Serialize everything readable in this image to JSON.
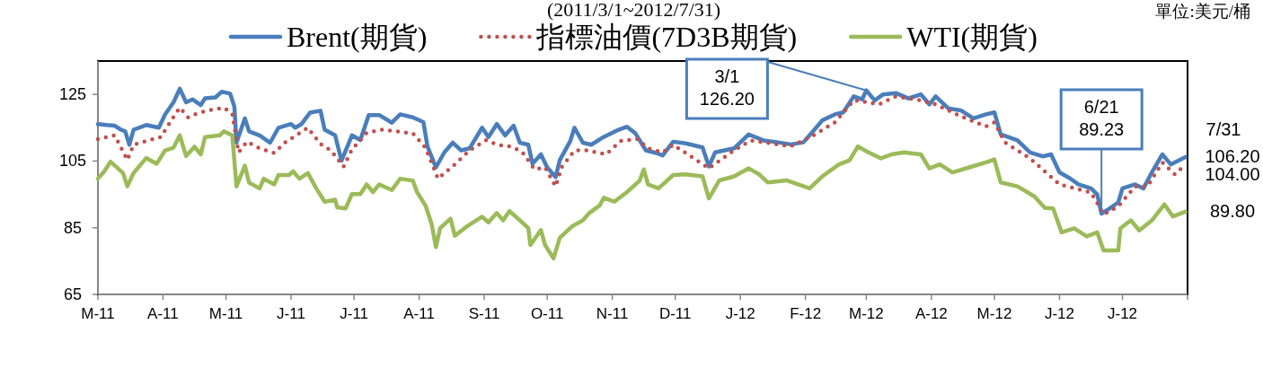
{
  "chart_data": {
    "type": "line",
    "subtitle": "(2011/3/1~2012/7/31)",
    "xlim": [
      "2011-03-01",
      "2012-08-01"
    ],
    "xticks": [
      {
        "value": "2011-03-01",
        "label": "M-11"
      },
      {
        "value": "2011-04-01",
        "label": "A-11"
      },
      {
        "value": "2011-05-01",
        "label": "M-11"
      },
      {
        "value": "2011-06-01",
        "label": "J-11"
      },
      {
        "value": "2011-07-01",
        "label": "J-11"
      },
      {
        "value": "2011-08-01",
        "label": "A-11"
      },
      {
        "value": "2011-09-01",
        "label": "S-11"
      },
      {
        "value": "2011-10-01",
        "label": "O-11"
      },
      {
        "value": "2011-11-01",
        "label": "N-11"
      },
      {
        "value": "2011-12-01",
        "label": "D-11"
      },
      {
        "value": "2012-01-01",
        "label": "J-12"
      },
      {
        "value": "2012-02-01",
        "label": "F-12"
      },
      {
        "value": "2012-03-01",
        "label": "M-12"
      },
      {
        "value": "2012-04-01",
        "label": "A-12"
      },
      {
        "value": "2012-05-01",
        "label": "M-12"
      },
      {
        "value": "2012-06-01",
        "label": "J-12"
      },
      {
        "value": "2012-07-01",
        "label": "J-12"
      },
      {
        "value": "2012-08-01",
        "label": null
      }
    ],
    "ylim": [
      65,
      135
    ],
    "yticks": [
      65,
      85,
      105,
      125
    ],
    "grid": false,
    "legend": "top",
    "marker": "none",
    "annotations": [
      "單位:美元/桶",
      "7/31",
      {
        "text": "3/1\n126.20",
        "x": "2012-03-01",
        "y": 126.2
      },
      {
        "text": "6/21\n89.23",
        "x": "2012-06-21",
        "y": 89.23
      },
      {
        "text": "106.20",
        "x": "2012-07-31",
        "y": 106.2
      },
      {
        "text": "104.00",
        "x": "2012-07-31",
        "y": 104.0
      },
      {
        "text": "89.80",
        "x": "2012-07-31",
        "y": 89.8
      }
    ],
    "series": [
      {
        "name": "Brent(期貨)",
        "color": "#4a7ebb",
        "line_style": "solid",
        "x": [
          "2011-03-01",
          "2011-03-05",
          "2011-03-09",
          "2011-03-12",
          "2011-03-14",
          "2011-03-16",
          "2011-03-18",
          "2011-03-24",
          "2011-03-30",
          "2011-04-02",
          "2011-04-06",
          "2011-04-09",
          "2011-04-12",
          "2011-04-15",
          "2011-04-19",
          "2011-04-21",
          "2011-04-26",
          "2011-04-29",
          "2011-05-03",
          "2011-05-05",
          "2011-05-06",
          "2011-05-10",
          "2011-05-12",
          "2011-05-17",
          "2011-05-22",
          "2011-05-26",
          "2011-06-01",
          "2011-06-03",
          "2011-06-06",
          "2011-06-10",
          "2011-06-15",
          "2011-06-17",
          "2011-06-22",
          "2011-06-25",
          "2011-06-30",
          "2011-07-04",
          "2011-07-08",
          "2011-07-13",
          "2011-07-19",
          "2011-07-23",
          "2011-07-29",
          "2011-08-03",
          "2011-08-05",
          "2011-08-09",
          "2011-08-13",
          "2011-08-17",
          "2011-08-21",
          "2011-08-25",
          "2011-08-31",
          "2011-09-03",
          "2011-09-07",
          "2011-09-11",
          "2011-09-15",
          "2011-09-18",
          "2011-09-22",
          "2011-09-24",
          "2011-09-28",
          "2011-10-01",
          "2011-10-05",
          "2011-10-07",
          "2011-10-12",
          "2011-10-14",
          "2011-10-18",
          "2011-10-22",
          "2011-10-27",
          "2011-11-04",
          "2011-11-08",
          "2011-11-12",
          "2011-11-17",
          "2011-11-22",
          "2011-11-25",
          "2011-11-30",
          "2011-12-06",
          "2011-12-14",
          "2011-12-17",
          "2011-12-20",
          "2011-12-29",
          "2012-01-05",
          "2012-01-12",
          "2012-01-19",
          "2012-01-25",
          "2012-01-31",
          "2012-02-05",
          "2012-02-09",
          "2012-02-15",
          "2012-02-19",
          "2012-02-24",
          "2012-02-28",
          "2012-03-01",
          "2012-03-05",
          "2012-03-09",
          "2012-03-15",
          "2012-03-21",
          "2012-03-27",
          "2012-03-31",
          "2012-04-03",
          "2012-04-09",
          "2012-04-15",
          "2012-04-21",
          "2012-04-27",
          "2012-05-01",
          "2012-05-04",
          "2012-05-12",
          "2012-05-18",
          "2012-05-24",
          "2012-05-28",
          "2012-06-01",
          "2012-06-06",
          "2012-06-10",
          "2012-06-16",
          "2012-06-19",
          "2012-06-21",
          "2012-06-25",
          "2012-06-29",
          "2012-07-01",
          "2012-07-07",
          "2012-07-11",
          "2012-07-15",
          "2012-07-20",
          "2012-07-24",
          "2012-07-31"
        ],
        "values": [
          116.1,
          115.8,
          115.6,
          114.4,
          113.9,
          109.9,
          114.4,
          115.8,
          115.0,
          119.0,
          122.6,
          126.7,
          122.6,
          123.5,
          121.8,
          123.8,
          124.1,
          125.8,
          125.2,
          121.3,
          110.5,
          117.8,
          113.9,
          112.7,
          110.5,
          115.0,
          116.1,
          115.0,
          116.1,
          119.5,
          120.1,
          114.4,
          112.7,
          105.1,
          112.7,
          111.3,
          118.8,
          118.8,
          116.5,
          119.0,
          118.1,
          116.7,
          109.3,
          103.1,
          107.6,
          110.5,
          108.2,
          108.8,
          115.0,
          112.2,
          116.1,
          112.7,
          115.6,
          110.5,
          109.9,
          104.2,
          107.0,
          103.1,
          100.2,
          105.3,
          111.0,
          115.0,
          110.5,
          109.9,
          111.9,
          114.4,
          115.3,
          113.3,
          108.2,
          107.4,
          106.7,
          110.8,
          110.3,
          109.1,
          103.4,
          107.6,
          108.8,
          113.0,
          111.2,
          110.6,
          110.0,
          110.6,
          114.2,
          117.2,
          119.0,
          119.6,
          124.4,
          123.5,
          126.2,
          123.2,
          125.0,
          125.4,
          123.8,
          125.0,
          122.0,
          124.4,
          120.8,
          120.2,
          117.8,
          119.0,
          119.6,
          113.0,
          111.2,
          107.6,
          106.4,
          107.0,
          101.6,
          99.8,
          98.0,
          96.8,
          95.0,
          89.23,
          90.8,
          92.6,
          96.8,
          98.0,
          96.8,
          101.6,
          107.0,
          104.0,
          106.2
        ]
      },
      {
        "name": "指標油價(7D3B期貨)",
        "color": "#c0504d",
        "line_style": "dotted",
        "x": [
          "2011-03-01",
          "2011-03-09",
          "2011-03-15",
          "2011-03-18",
          "2011-03-24",
          "2011-03-31",
          "2011-04-05",
          "2011-04-09",
          "2011-04-13",
          "2011-04-16",
          "2011-04-22",
          "2011-04-30",
          "2011-05-04",
          "2011-05-07",
          "2011-05-11",
          "2011-05-17",
          "2011-05-24",
          "2011-05-29",
          "2011-06-09",
          "2011-06-15",
          "2011-06-20",
          "2011-06-26",
          "2011-06-30",
          "2011-07-07",
          "2011-07-14",
          "2011-07-21",
          "2011-07-29",
          "2011-08-04",
          "2011-08-10",
          "2011-08-18",
          "2011-08-25",
          "2011-09-02",
          "2011-09-07",
          "2011-09-14",
          "2011-09-19",
          "2011-09-25",
          "2011-09-30",
          "2011-10-05",
          "2011-10-08",
          "2011-10-14",
          "2011-10-20",
          "2011-10-29",
          "2011-11-05",
          "2011-11-13",
          "2011-11-18",
          "2011-11-25",
          "2011-11-30",
          "2011-12-17",
          "2011-12-29",
          "2012-01-06",
          "2012-01-25",
          "2012-02-04",
          "2012-02-15",
          "2012-02-24",
          "2012-03-02",
          "2012-03-07",
          "2012-03-15",
          "2012-03-27",
          "2012-04-03",
          "2012-04-15",
          "2012-04-27",
          "2012-05-01",
          "2012-05-06",
          "2012-05-18",
          "2012-06-01",
          "2012-06-16",
          "2012-06-22",
          "2012-06-29",
          "2012-07-07",
          "2012-07-13",
          "2012-07-20",
          "2012-07-26",
          "2012-07-31"
        ],
        "values": [
          111.6,
          112.7,
          105.3,
          109.9,
          111.0,
          112.2,
          117.3,
          121.0,
          118.1,
          119.0,
          120.1,
          121.0,
          119.2,
          107.6,
          110.8,
          108.8,
          107.4,
          110.5,
          115.0,
          110.1,
          108.2,
          103.3,
          108.5,
          113.5,
          114.4,
          113.9,
          113.3,
          109.0,
          99.7,
          104.0,
          108.2,
          111.3,
          109.9,
          109.3,
          107.8,
          102.5,
          103.1,
          97.4,
          103.3,
          108.2,
          108.2,
          107.0,
          111.0,
          111.6,
          108.8,
          107.6,
          109.9,
          102.8,
          108.2,
          111.2,
          109.4,
          112.4,
          116.6,
          123.2,
          122.6,
          122.0,
          124.4,
          123.2,
          122.0,
          118.4,
          115.4,
          116.6,
          110.6,
          105.8,
          98.0,
          95.6,
          89.0,
          91.4,
          97.4,
          97.4,
          104.6,
          101.0,
          104.0
        ]
      },
      {
        "name": "WTI(期貨)",
        "color": "#9bbb59",
        "line_style": "solid",
        "x": [
          "2011-03-01",
          "2011-03-04",
          "2011-03-07",
          "2011-03-13",
          "2011-03-15",
          "2011-03-18",
          "2011-03-24",
          "2011-03-29",
          "2011-04-02",
          "2011-04-06",
          "2011-04-09",
          "2011-04-12",
          "2011-04-16",
          "2011-04-19",
          "2011-04-21",
          "2011-04-28",
          "2011-04-30",
          "2011-05-04",
          "2011-05-06",
          "2011-05-10",
          "2011-05-12",
          "2011-05-17",
          "2011-05-19",
          "2011-05-24",
          "2011-05-26",
          "2011-05-31",
          "2011-06-02",
          "2011-06-05",
          "2011-06-09",
          "2011-06-13",
          "2011-06-17",
          "2011-06-22",
          "2011-06-23",
          "2011-06-27",
          "2011-06-30",
          "2011-07-04",
          "2011-07-07",
          "2011-07-10",
          "2011-07-13",
          "2011-07-19",
          "2011-07-23",
          "2011-07-29",
          "2011-07-31",
          "2011-08-04",
          "2011-08-07",
          "2011-08-09",
          "2011-08-11",
          "2011-08-16",
          "2011-08-18",
          "2011-08-24",
          "2011-08-31",
          "2011-09-03",
          "2011-09-07",
          "2011-09-10",
          "2011-09-13",
          "2011-09-18",
          "2011-09-22",
          "2011-09-23",
          "2011-09-28",
          "2011-09-30",
          "2011-10-04",
          "2011-10-07",
          "2011-10-13",
          "2011-10-18",
          "2011-10-21",
          "2011-10-26",
          "2011-10-28",
          "2011-11-02",
          "2011-11-08",
          "2011-11-14",
          "2011-11-16",
          "2011-11-18",
          "2011-11-23",
          "2011-11-30",
          "2011-12-06",
          "2011-12-14",
          "2011-12-17",
          "2011-12-22",
          "2011-12-29",
          "2012-01-05",
          "2012-01-10",
          "2012-01-14",
          "2012-01-23",
          "2012-02-03",
          "2012-02-09",
          "2012-02-17",
          "2012-02-22",
          "2012-02-26",
          "2012-03-02",
          "2012-03-08",
          "2012-03-13",
          "2012-03-19",
          "2012-03-27",
          "2012-03-31",
          "2012-04-05",
          "2012-04-11",
          "2012-04-19",
          "2012-04-27",
          "2012-05-01",
          "2012-05-04",
          "2012-05-12",
          "2012-05-20",
          "2012-05-25",
          "2012-05-29",
          "2012-06-02",
          "2012-06-08",
          "2012-06-14",
          "2012-06-19",
          "2012-06-22",
          "2012-06-29",
          "2012-06-30",
          "2012-07-05",
          "2012-07-09",
          "2012-07-15",
          "2012-07-21",
          "2012-07-25",
          "2012-07-31"
        ],
        "values": [
          99.7,
          101.9,
          104.8,
          101.4,
          97.4,
          101.4,
          105.9,
          104.2,
          108.2,
          109.0,
          112.7,
          106.5,
          109.3,
          107.0,
          112.2,
          112.7,
          113.9,
          112.7,
          97.4,
          103.6,
          98.5,
          96.8,
          99.7,
          98.0,
          100.8,
          100.8,
          101.9,
          99.7,
          101.4,
          96.8,
          92.8,
          93.4,
          91.1,
          90.8,
          95.1,
          95.1,
          98.0,
          95.7,
          98.0,
          96.3,
          99.7,
          99.1,
          95.7,
          91.7,
          86.0,
          79.2,
          84.9,
          87.7,
          82.6,
          85.5,
          88.3,
          86.6,
          89.4,
          87.2,
          90.0,
          87.2,
          84.9,
          79.8,
          84.3,
          79.8,
          75.8,
          82.0,
          85.5,
          87.2,
          89.4,
          91.7,
          94.0,
          92.8,
          95.7,
          99.1,
          102.5,
          98.0,
          96.8,
          100.8,
          101.0,
          100.4,
          93.8,
          99.2,
          100.4,
          102.8,
          101.0,
          98.6,
          99.2,
          96.8,
          100.4,
          104.0,
          105.2,
          109.4,
          107.6,
          105.8,
          107.0,
          107.6,
          107.0,
          102.8,
          104.0,
          101.6,
          103.1,
          104.6,
          105.5,
          98.6,
          97.4,
          94.4,
          91.0,
          90.8,
          83.6,
          84.8,
          82.4,
          83.6,
          78.2,
          78.2,
          84.8,
          87.2,
          84.2,
          87.2,
          92.0,
          88.4,
          89.8
        ]
      }
    ]
  }
}
